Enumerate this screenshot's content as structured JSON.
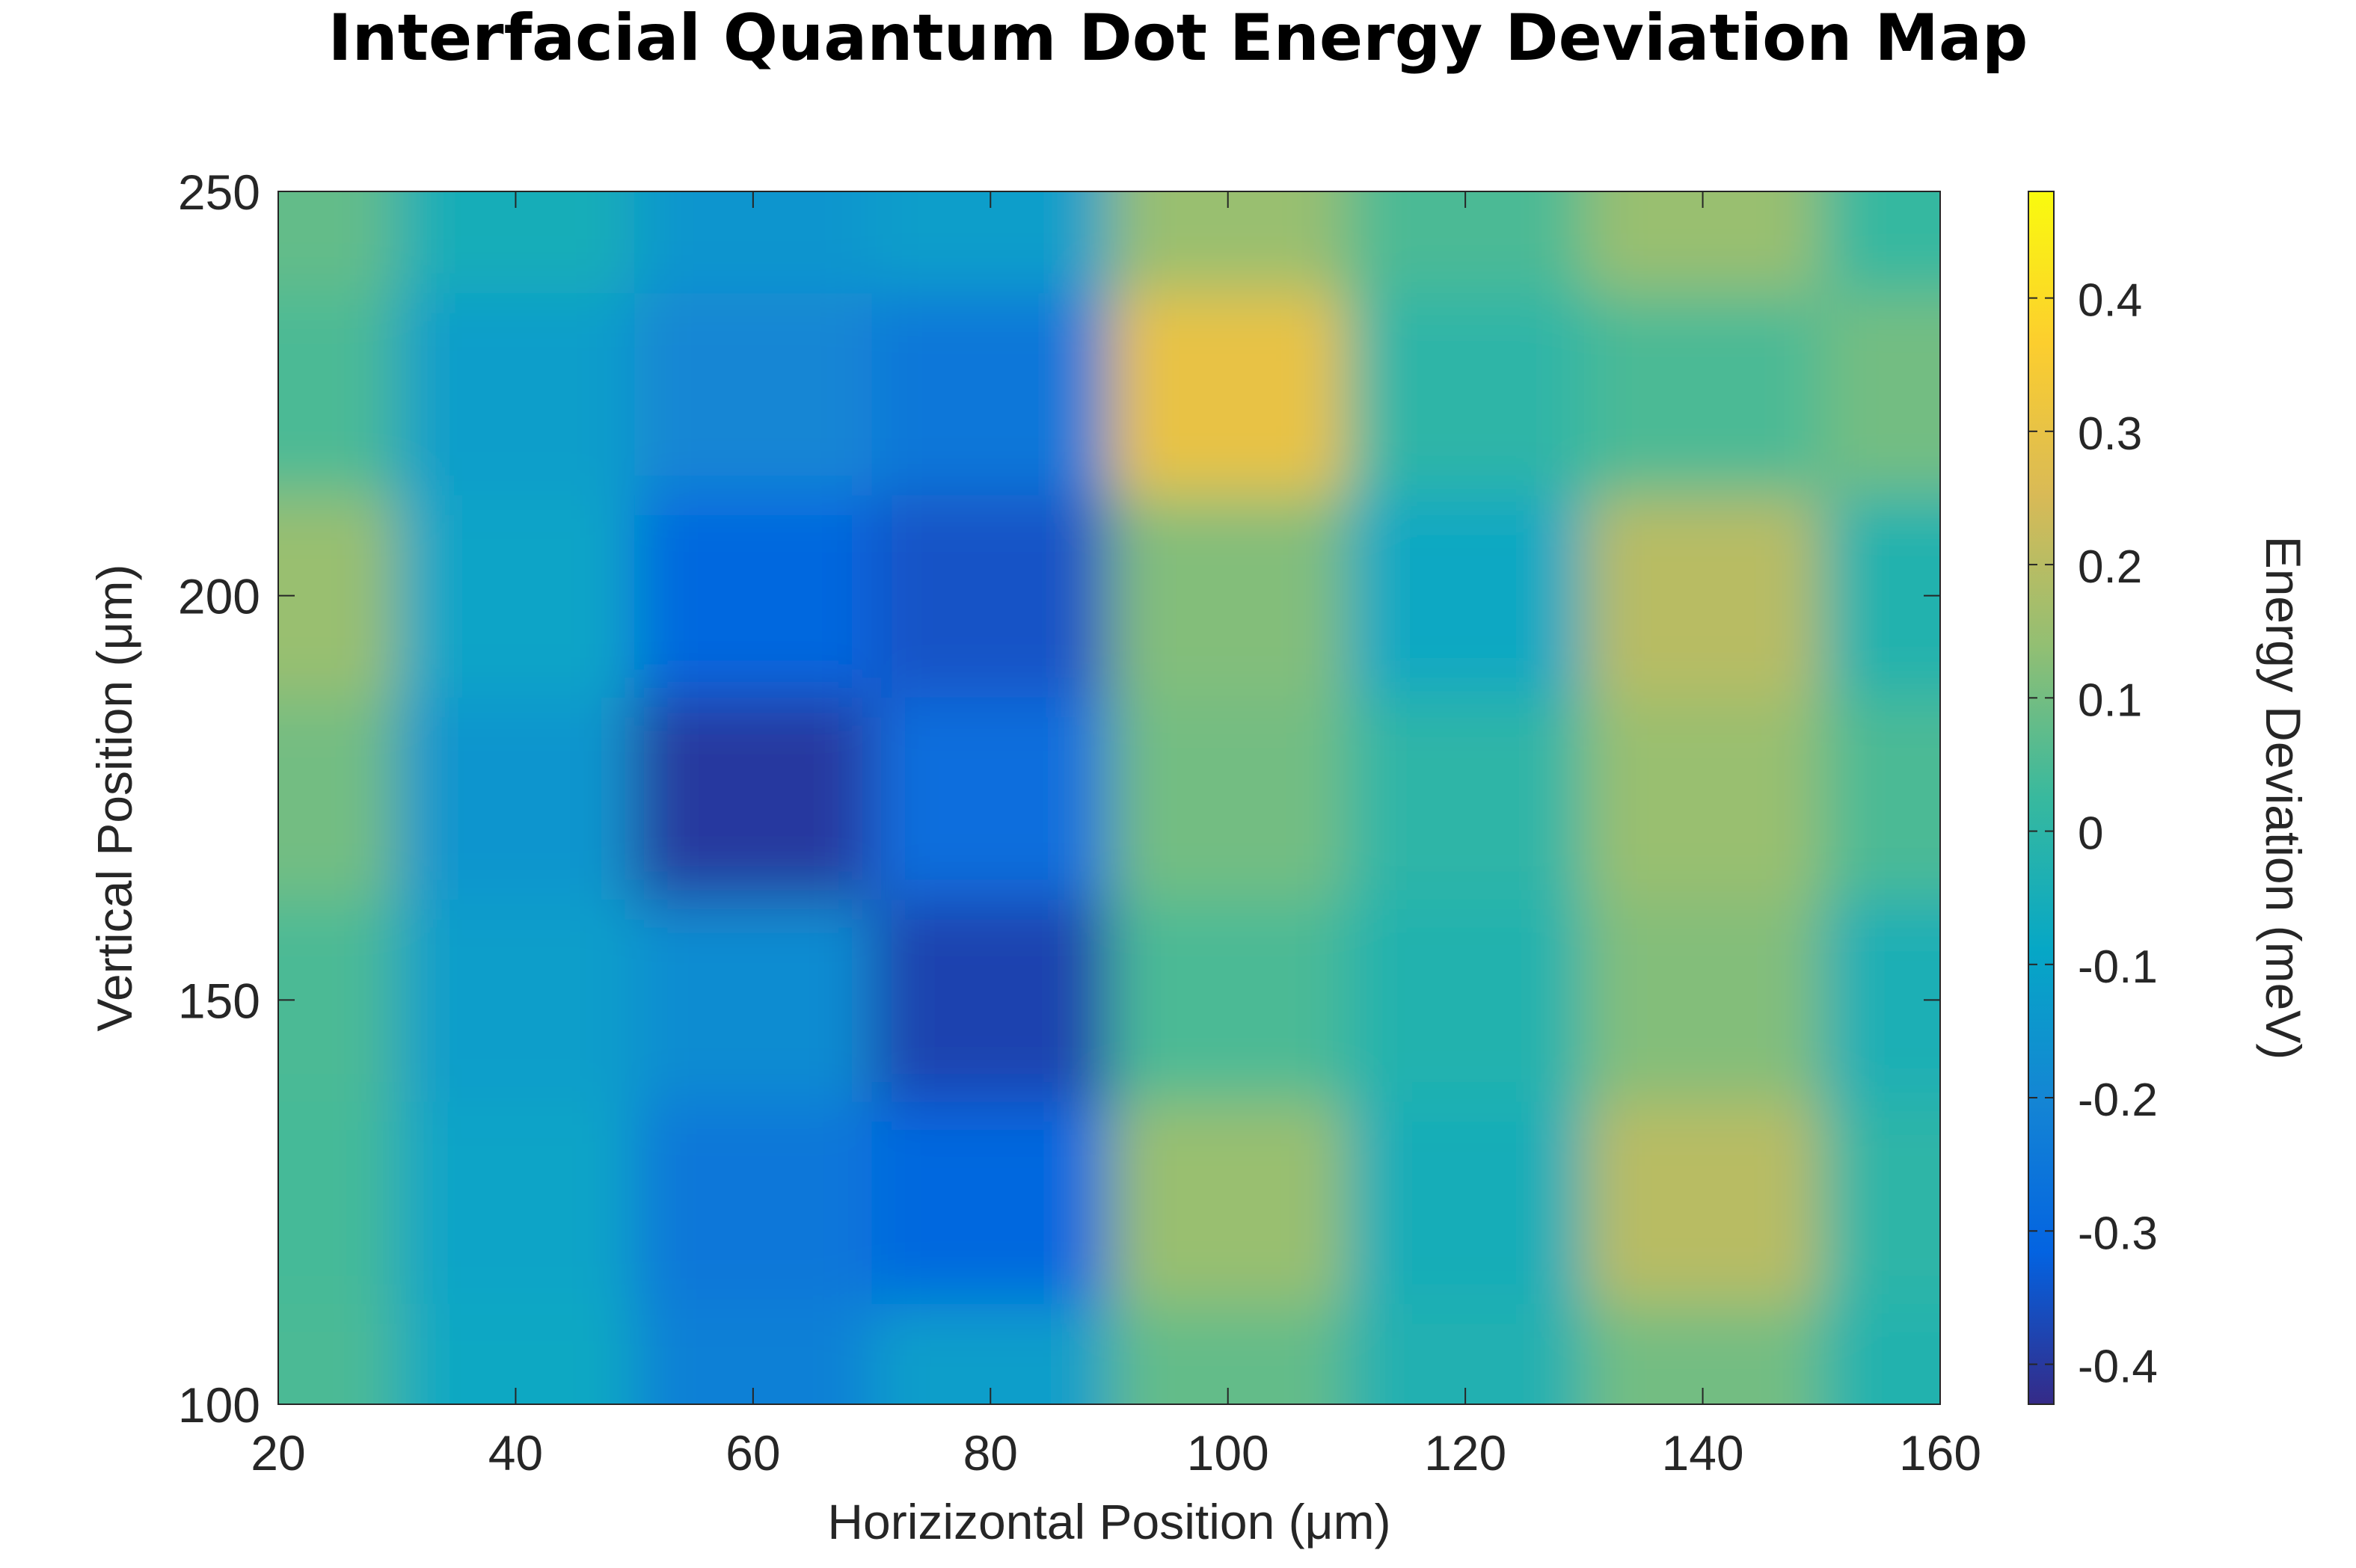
{
  "chart_data": {
    "type": "heatmap",
    "title": "Interfacial Quantum Dot Energy Deviation Map",
    "xlabel": "Horizizontal Position (μm)",
    "ylabel": "Vertical Position (μm)",
    "colorbar_label": "Energy Deviation (meV)",
    "xlim": [
      20,
      160
    ],
    "ylim": [
      100,
      250
    ],
    "clim": [
      -0.43,
      0.48
    ],
    "x_ticks": [
      20,
      40,
      60,
      80,
      100,
      120,
      140,
      160
    ],
    "x_tick_labels": [
      "20",
      "40",
      "60",
      "80",
      "100",
      "120",
      "140",
      "160"
    ],
    "y_ticks": [
      100,
      150,
      200,
      250
    ],
    "y_tick_labels": [
      "100",
      "150",
      "200",
      "250"
    ],
    "colorbar_ticks": [
      -0.4,
      -0.3,
      -0.2,
      -0.1,
      0,
      0.1,
      0.2,
      0.3,
      0.4
    ],
    "colorbar_tick_labels": [
      "-0.4",
      "-0.3",
      "-0.2",
      "-0.1",
      "0",
      "0.1",
      "0.2",
      "0.3",
      "0.4"
    ],
    "colormap": "parula",
    "colormap_stops": [
      "#352a87",
      "#0363e1",
      "#1485d4",
      "#06a7c6",
      "#38b99e",
      "#92bf73",
      "#d9ba56",
      "#fcce2e",
      "#f9fb0e"
    ],
    "x_grid": [
      20,
      40,
      60,
      80,
      100,
      120,
      140,
      160
    ],
    "y_grid": [
      100,
      125,
      150,
      175,
      200,
      225,
      250
    ],
    "z_rows": [
      [
        0.05,
        -0.08,
        -0.22,
        -0.12,
        0.08,
        -0.03,
        0.1,
        -0.02
      ],
      [
        0.04,
        -0.1,
        -0.25,
        -0.3,
        0.15,
        -0.05,
        0.2,
        0.0
      ],
      [
        0.05,
        -0.12,
        -0.18,
        -0.38,
        0.05,
        -0.02,
        0.12,
        -0.04
      ],
      [
        0.1,
        -0.15,
        -0.4,
        -0.28,
        0.1,
        0.0,
        0.15,
        0.05
      ],
      [
        0.15,
        -0.1,
        -0.3,
        -0.35,
        0.12,
        -0.08,
        0.2,
        -0.02
      ],
      [
        0.05,
        -0.12,
        -0.2,
        -0.25,
        0.3,
        0.0,
        0.05,
        0.1
      ],
      [
        0.08,
        -0.05,
        -0.15,
        -0.12,
        0.15,
        0.05,
        0.15,
        0.02
      ]
    ]
  },
  "figure": {
    "background": "#ffffff",
    "axis_color": "#262626",
    "text_color": "#262626",
    "title_color": "#000000"
  }
}
